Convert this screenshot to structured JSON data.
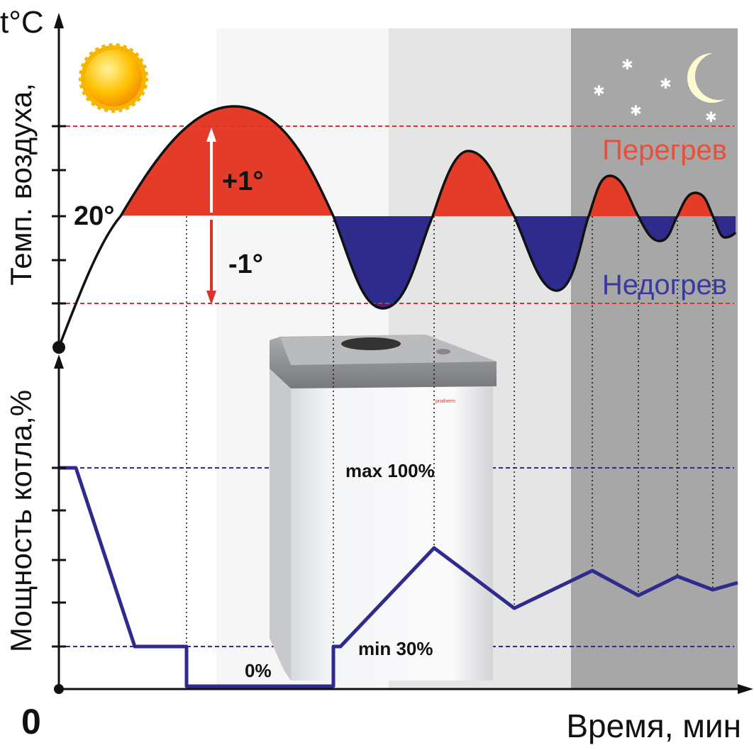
{
  "axis": {
    "y_unit": "t°C",
    "y_upper_label": "Темп. воздуха,",
    "y_lower_label": "Мощность котла,%",
    "origin": "0",
    "x_label": "Время, мин"
  },
  "labels": {
    "setpoint": "20°",
    "plus": "+1°",
    "minus": "-1°",
    "overheat": "Перегрев",
    "underheat": "Недогрев",
    "max": "max 100%",
    "min": "min 30%",
    "zero": "0%"
  },
  "boiler_brand": "protherm"
}
